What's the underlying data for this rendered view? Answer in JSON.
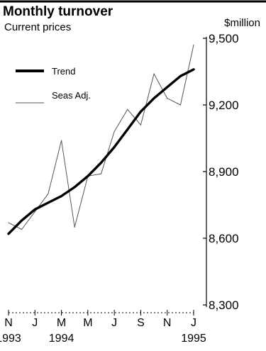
{
  "chart_data": {
    "type": "line",
    "title": "Monthly turnover",
    "subtitle": "Current prices",
    "ylabel": "$million",
    "ylim": [
      8300,
      9500
    ],
    "y_ticks": [
      "9,500",
      "9,200",
      "8,900",
      "8,600",
      "8,300"
    ],
    "y_tick_values": [
      9500,
      9200,
      8900,
      8600,
      8300
    ],
    "x_tick_labels": [
      "N",
      "J",
      "M",
      "M",
      "J",
      "S",
      "N",
      "J"
    ],
    "x_tick_month_index": [
      0,
      2,
      4,
      6,
      8,
      10,
      12,
      14
    ],
    "x_year_labels": [
      {
        "label": "1993",
        "month_index": 0
      },
      {
        "label": "1994",
        "month_index": 4
      },
      {
        "label": "1995",
        "month_index": 14
      }
    ],
    "months": [
      "Nov 1993",
      "Dec 1993",
      "Jan 1994",
      "Feb 1994",
      "Mar 1994",
      "Apr 1994",
      "May 1994",
      "Jun 1994",
      "Jul 1994",
      "Aug 1994",
      "Sep 1994",
      "Oct 1994",
      "Nov 1994",
      "Dec 1994",
      "Jan 1995"
    ],
    "legend_position": "top-left",
    "grid": false,
    "series": [
      {
        "name": "Trend",
        "style": "solid-thick",
        "color": "#000000",
        "values": [
          8620,
          8680,
          8730,
          8760,
          8790,
          8830,
          8880,
          8940,
          9010,
          9090,
          9170,
          9230,
          9280,
          9330,
          9360
        ]
      },
      {
        "name": "Seas Adj.",
        "style": "thin",
        "color": "#555555",
        "values": [
          8670,
          8640,
          8720,
          8800,
          9040,
          8650,
          8880,
          8890,
          9080,
          9180,
          9110,
          9340,
          9230,
          9200,
          9470
        ]
      }
    ]
  }
}
